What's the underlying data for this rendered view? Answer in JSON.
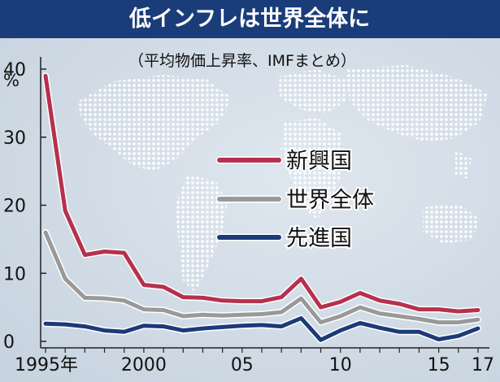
{
  "chart_data": {
    "type": "line",
    "title": "低インフレは世界全体に",
    "subtitle": "（平均物価上昇率、IMFまとめ）",
    "unit": "%",
    "x": [
      1995,
      1996,
      1997,
      1998,
      1999,
      2000,
      2001,
      2002,
      2003,
      2004,
      2005,
      2006,
      2007,
      2008,
      2009,
      2010,
      2011,
      2012,
      2013,
      2014,
      2015,
      2016,
      2017
    ],
    "x_tick_labels": [
      {
        "x": 1995,
        "label": "1995年"
      },
      {
        "x": 2000,
        "label": "2000"
      },
      {
        "x": 2005,
        "label": "05"
      },
      {
        "x": 2010,
        "label": "10"
      },
      {
        "x": 2015,
        "label": "15"
      },
      {
        "x": 2017,
        "label": "17"
      }
    ],
    "y_ticks": [
      {
        "value": 0,
        "label": "0"
      },
      {
        "value": 10,
        "label": "10"
      },
      {
        "value": 20,
        "label": "20"
      },
      {
        "value": 30,
        "label": "30"
      },
      {
        "value": 40,
        "label": "40"
      }
    ],
    "ylim": [
      0,
      40
    ],
    "grid": false,
    "legend_position": "center-right",
    "series": [
      {
        "name": "新興国",
        "color": "#b5314e",
        "values": [
          39.0,
          19.2,
          12.7,
          13.2,
          13.0,
          8.3,
          8.0,
          6.5,
          6.4,
          6.0,
          5.9,
          5.9,
          6.5,
          9.2,
          5.0,
          5.8,
          7.1,
          6.0,
          5.5,
          4.7,
          4.7,
          4.4,
          4.6
        ]
      },
      {
        "name": "世界全体",
        "color": "#999999",
        "values": [
          16.0,
          9.2,
          6.4,
          6.3,
          6.0,
          4.7,
          4.6,
          3.7,
          3.9,
          3.8,
          3.9,
          4.0,
          4.3,
          6.3,
          2.8,
          3.7,
          5.0,
          4.1,
          3.7,
          3.3,
          2.8,
          2.8,
          3.2
        ]
      },
      {
        "name": "先進国",
        "color": "#1c3a78",
        "values": [
          2.6,
          2.5,
          2.2,
          1.6,
          1.4,
          2.3,
          2.2,
          1.6,
          1.9,
          2.1,
          2.3,
          2.4,
          2.2,
          3.4,
          0.2,
          1.6,
          2.7,
          2.0,
          1.4,
          1.4,
          0.3,
          0.8,
          1.9
        ]
      }
    ]
  }
}
